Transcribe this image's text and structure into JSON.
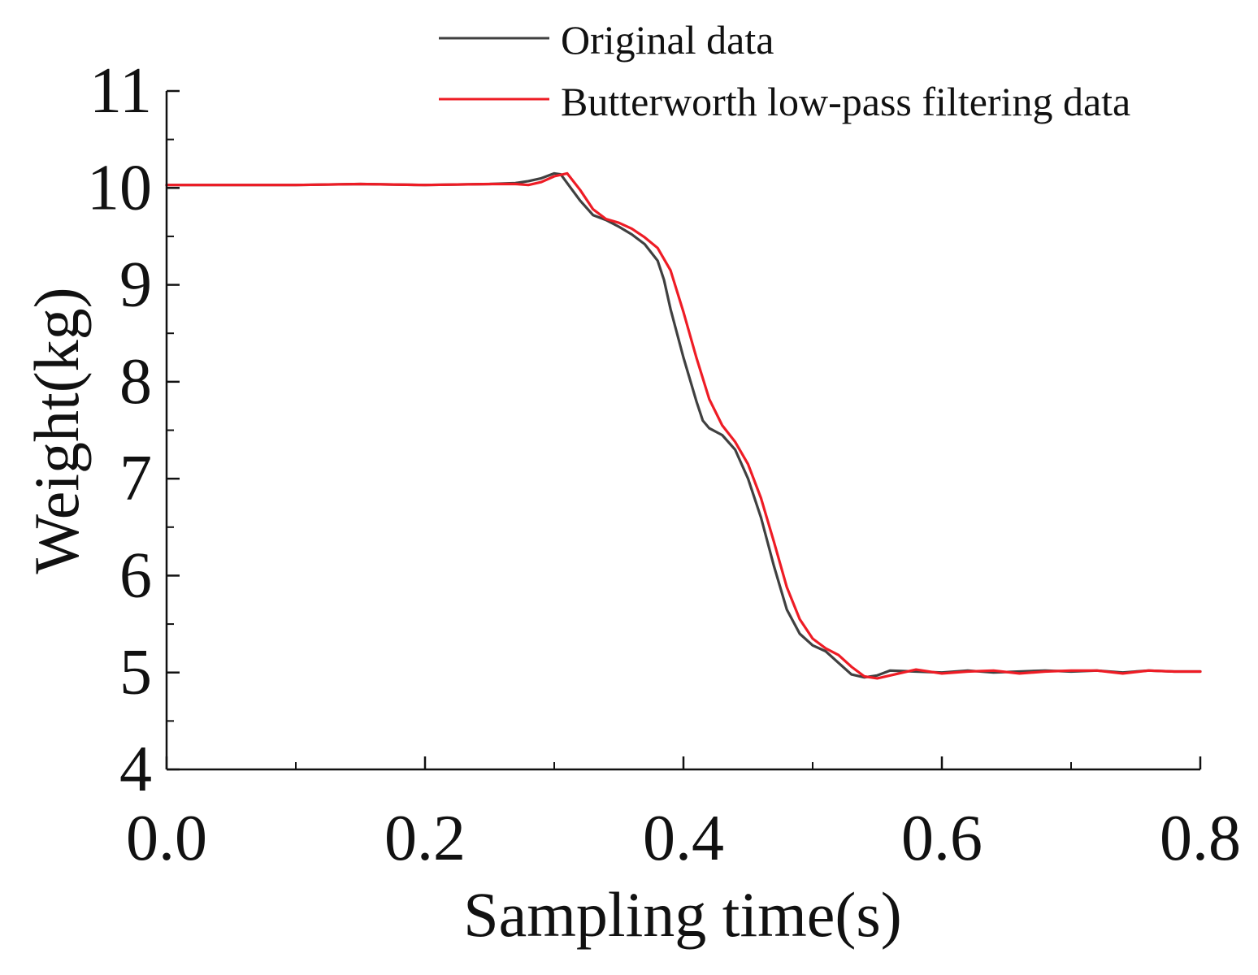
{
  "chart_data": {
    "type": "line",
    "title": "",
    "xlabel": "Sampling time(s)",
    "ylabel": "Weight(kg)",
    "xlim": [
      0.0,
      0.8
    ],
    "ylim": [
      4,
      11
    ],
    "x_ticks": [
      0.0,
      0.2,
      0.4,
      0.6,
      0.8
    ],
    "x_tick_labels": [
      "0.0",
      "0.2",
      "0.4",
      "0.6",
      "0.8"
    ],
    "y_ticks": [
      4,
      5,
      6,
      7,
      8,
      9,
      10,
      11
    ],
    "y_tick_labels": [
      "4",
      "5",
      "6",
      "7",
      "8",
      "9",
      "10",
      "11"
    ],
    "grid": false,
    "legend_position": "top-right",
    "series": [
      {
        "name": "Original data",
        "color": "#404040",
        "x": [
          0.0,
          0.05,
          0.1,
          0.15,
          0.2,
          0.25,
          0.27,
          0.28,
          0.29,
          0.3,
          0.305,
          0.31,
          0.32,
          0.33,
          0.34,
          0.35,
          0.36,
          0.37,
          0.38,
          0.385,
          0.39,
          0.4,
          0.41,
          0.415,
          0.42,
          0.43,
          0.44,
          0.45,
          0.46,
          0.47,
          0.48,
          0.49,
          0.5,
          0.51,
          0.52,
          0.53,
          0.54,
          0.55,
          0.56,
          0.58,
          0.6,
          0.62,
          0.64,
          0.66,
          0.68,
          0.7,
          0.72,
          0.74,
          0.76,
          0.78,
          0.8
        ],
        "y": [
          10.03,
          10.03,
          10.03,
          10.04,
          10.03,
          10.04,
          10.05,
          10.07,
          10.1,
          10.15,
          10.14,
          10.05,
          9.87,
          9.72,
          9.67,
          9.6,
          9.52,
          9.42,
          9.25,
          9.05,
          8.75,
          8.25,
          7.8,
          7.6,
          7.52,
          7.45,
          7.3,
          7.0,
          6.6,
          6.1,
          5.65,
          5.4,
          5.28,
          5.22,
          5.1,
          4.98,
          4.95,
          4.97,
          5.02,
          5.01,
          5.0,
          5.02,
          5.0,
          5.01,
          5.02,
          5.01,
          5.02,
          5.0,
          5.02,
          5.01,
          5.01
        ]
      },
      {
        "name": "Butterworth low-pass filtering data",
        "color": "#ee1c25",
        "x": [
          0.0,
          0.05,
          0.1,
          0.15,
          0.2,
          0.25,
          0.27,
          0.28,
          0.29,
          0.3,
          0.31,
          0.32,
          0.33,
          0.34,
          0.35,
          0.36,
          0.37,
          0.38,
          0.39,
          0.4,
          0.41,
          0.42,
          0.43,
          0.44,
          0.45,
          0.46,
          0.47,
          0.48,
          0.49,
          0.5,
          0.51,
          0.52,
          0.53,
          0.54,
          0.55,
          0.56,
          0.58,
          0.6,
          0.62,
          0.64,
          0.66,
          0.68,
          0.7,
          0.72,
          0.74,
          0.76,
          0.78,
          0.8
        ],
        "y": [
          10.03,
          10.03,
          10.03,
          10.04,
          10.03,
          10.04,
          10.04,
          10.03,
          10.06,
          10.12,
          10.15,
          9.98,
          9.78,
          9.68,
          9.64,
          9.58,
          9.49,
          9.38,
          9.15,
          8.72,
          8.25,
          7.82,
          7.55,
          7.38,
          7.15,
          6.8,
          6.35,
          5.88,
          5.55,
          5.35,
          5.25,
          5.18,
          5.06,
          4.96,
          4.94,
          4.97,
          5.03,
          4.99,
          5.01,
          5.02,
          4.99,
          5.01,
          5.02,
          5.02,
          4.99,
          5.02,
          5.01,
          5.01
        ]
      }
    ]
  }
}
